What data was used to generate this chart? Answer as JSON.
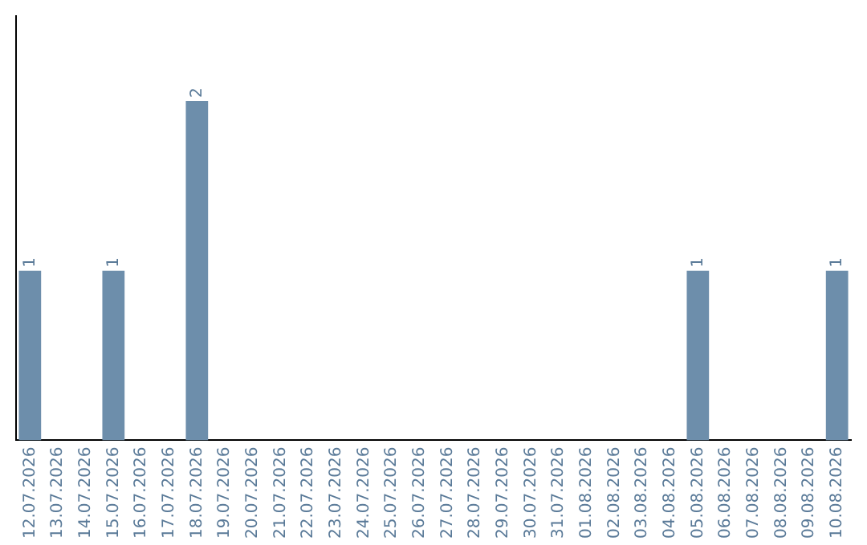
{
  "chart_data": {
    "type": "bar",
    "categories": [
      "12.07.2026",
      "13.07.2026",
      "14.07.2026",
      "15.07.2026",
      "16.07.2026",
      "17.07.2026",
      "18.07.2026",
      "19.07.2026",
      "20.07.2026",
      "21.07.2026",
      "22.07.2026",
      "23.07.2026",
      "24.07.2026",
      "25.07.2026",
      "26.07.2026",
      "27.07.2026",
      "28.07.2026",
      "29.07.2026",
      "30.07.2026",
      "31.07.2026",
      "01.08.2026",
      "02.08.2026",
      "03.08.2026",
      "04.08.2026",
      "05.08.2026",
      "06.08.2026",
      "07.08.2026",
      "08.08.2026",
      "09.08.2026",
      "10.08.2026"
    ],
    "values": [
      1,
      0,
      0,
      1,
      0,
      0,
      2,
      0,
      0,
      0,
      0,
      0,
      0,
      0,
      0,
      0,
      0,
      0,
      0,
      0,
      0,
      0,
      0,
      0,
      1,
      0,
      0,
      0,
      0,
      1
    ],
    "value_labels": [
      "1",
      null,
      null,
      "1",
      null,
      null,
      "2",
      null,
      null,
      null,
      null,
      null,
      null,
      null,
      null,
      null,
      null,
      null,
      null,
      null,
      null,
      null,
      null,
      null,
      "1",
      null,
      null,
      null,
      null,
      "1"
    ],
    "color": "#6d8eab",
    "tick_labels": "x",
    "grid": false,
    "legend": false
  }
}
